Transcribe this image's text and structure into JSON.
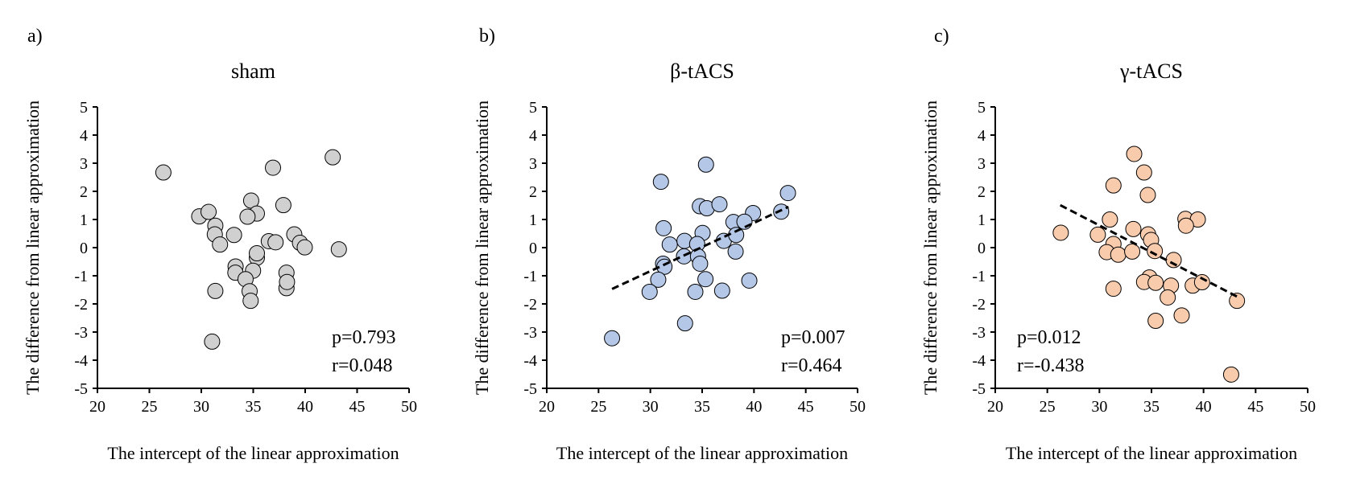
{
  "chart_data": [
    {
      "type": "scatter",
      "panel_label": "a)",
      "title": "sham",
      "xlabel": "The intercept of the linear approximation",
      "ylabel": "The difference from linear approximation",
      "xlim": [
        20,
        50
      ],
      "ylim": [
        -5,
        5
      ],
      "xticks": [
        "20",
        "25",
        "30",
        "35",
        "40",
        "45",
        "50"
      ],
      "yticks": [
        "5",
        "4",
        "3",
        "2",
        "1",
        "0",
        "-1",
        "-2",
        "-3",
        "-4",
        "-5"
      ],
      "color": "#d0d0d0",
      "stats": {
        "p": "p=0.793",
        "r": "r=0.048"
      },
      "trendline": null,
      "points": [
        [
          26.35,
          2.67
        ],
        [
          36.9,
          2.84
        ],
        [
          42.65,
          3.21
        ],
        [
          29.8,
          1.11
        ],
        [
          30.7,
          1.27
        ],
        [
          34.8,
          1.67
        ],
        [
          35.35,
          1.21
        ],
        [
          34.45,
          1.1
        ],
        [
          37.9,
          1.51
        ],
        [
          31.35,
          0.78
        ],
        [
          31.3,
          0.47
        ],
        [
          31.8,
          0.11
        ],
        [
          33.15,
          0.45
        ],
        [
          36.5,
          0.23
        ],
        [
          37.15,
          0.19
        ],
        [
          38.95,
          0.47
        ],
        [
          39.5,
          0.17
        ],
        [
          39.96,
          0.01
        ],
        [
          43.24,
          -0.06
        ],
        [
          35.35,
          -0.36
        ],
        [
          35.35,
          -0.2
        ],
        [
          33.3,
          -0.67
        ],
        [
          33.28,
          -0.89
        ],
        [
          34.98,
          -0.82
        ],
        [
          34.26,
          -1.12
        ],
        [
          38.2,
          -0.89
        ],
        [
          38.2,
          -1.44
        ],
        [
          38.25,
          -1.22
        ],
        [
          31.35,
          -1.54
        ],
        [
          34.65,
          -1.55
        ],
        [
          34.75,
          -1.89
        ],
        [
          31.04,
          -3.34
        ]
      ]
    },
    {
      "type": "scatter",
      "panel_label": "b)",
      "title": "β-tACS",
      "xlabel": "The intercept of the linear approximation",
      "ylabel": "The difference from linear approximation",
      "xlim": [
        20,
        50
      ],
      "ylim": [
        -5,
        5
      ],
      "xticks": [
        "20",
        "25",
        "30",
        "35",
        "40",
        "45",
        "50"
      ],
      "yticks": [
        "5",
        "4",
        "3",
        "2",
        "1",
        "0",
        "-1",
        "-2",
        "-3",
        "-4",
        "-5"
      ],
      "color": "#b4c7e7",
      "stats": {
        "p": "p=0.007",
        "r": "r=0.464"
      },
      "trendline": [
        [
          26.3,
          -1.47
        ],
        [
          43.33,
          1.45
        ]
      ],
      "points": [
        [
          35.37,
          2.95
        ],
        [
          31.02,
          2.34
        ],
        [
          43.28,
          1.94
        ],
        [
          34.78,
          1.47
        ],
        [
          35.45,
          1.4
        ],
        [
          36.67,
          1.54
        ],
        [
          39.91,
          1.23
        ],
        [
          42.63,
          1.28
        ],
        [
          38.02,
          0.91
        ],
        [
          39.08,
          0.92
        ],
        [
          31.28,
          0.69
        ],
        [
          35.04,
          0.52
        ],
        [
          31.87,
          0.11
        ],
        [
          33.3,
          0.24
        ],
        [
          34.52,
          0.13
        ],
        [
          37.09,
          0.24
        ],
        [
          38.28,
          0.45
        ],
        [
          38.23,
          -0.14
        ],
        [
          33.25,
          -0.31
        ],
        [
          34.6,
          -0.31
        ],
        [
          34.8,
          -0.57
        ],
        [
          31.23,
          -0.57
        ],
        [
          31.36,
          -0.68
        ],
        [
          30.76,
          -1.14
        ],
        [
          29.93,
          -1.57
        ],
        [
          35.32,
          -1.12
        ],
        [
          34.34,
          -1.57
        ],
        [
          36.93,
          -1.53
        ],
        [
          39.55,
          -1.17
        ],
        [
          33.35,
          -2.69
        ],
        [
          26.3,
          -3.22
        ]
      ]
    },
    {
      "type": "scatter",
      "panel_label": "c)",
      "title": "γ-tACS",
      "xlabel": "The intercept of the linear approximation",
      "ylabel": "The difference from linear approximation",
      "xlim": [
        20,
        50
      ],
      "ylim": [
        -5,
        5
      ],
      "xticks": [
        "20",
        "25",
        "30",
        "35",
        "40",
        "45",
        "50"
      ],
      "yticks": [
        "5",
        "4",
        "3",
        "2",
        "1",
        "0",
        "-1",
        "-2",
        "-3",
        "-4",
        "-5"
      ],
      "color": "#f8cbad",
      "stats": {
        "p": "p=0.012",
        "r": "r=-0.438"
      },
      "trendline": [
        [
          26.24,
          1.51
        ],
        [
          43.27,
          -1.75
        ]
      ],
      "points": [
        [
          33.34,
          3.33
        ],
        [
          34.29,
          2.67
        ],
        [
          31.35,
          2.21
        ],
        [
          34.65,
          1.87
        ],
        [
          31.01,
          1.0
        ],
        [
          38.26,
          1.02
        ],
        [
          39.45,
          1.0
        ],
        [
          38.31,
          0.78
        ],
        [
          26.29,
          0.53
        ],
        [
          29.85,
          0.46
        ],
        [
          33.26,
          0.66
        ],
        [
          34.68,
          0.47
        ],
        [
          34.96,
          0.27
        ],
        [
          31.35,
          0.13
        ],
        [
          30.7,
          -0.16
        ],
        [
          31.81,
          -0.25
        ],
        [
          33.15,
          -0.14
        ],
        [
          35.32,
          -0.12
        ],
        [
          37.13,
          -0.44
        ],
        [
          34.8,
          -1.06
        ],
        [
          34.29,
          -1.22
        ],
        [
          35.4,
          -1.25
        ],
        [
          36.87,
          -1.35
        ],
        [
          38.96,
          -1.35
        ],
        [
          39.86,
          -1.23
        ],
        [
          31.35,
          -1.46
        ],
        [
          36.56,
          -1.77
        ],
        [
          43.21,
          -1.89
        ],
        [
          37.9,
          -2.41
        ],
        [
          35.4,
          -2.6
        ],
        [
          42.65,
          -4.51
        ]
      ]
    }
  ]
}
